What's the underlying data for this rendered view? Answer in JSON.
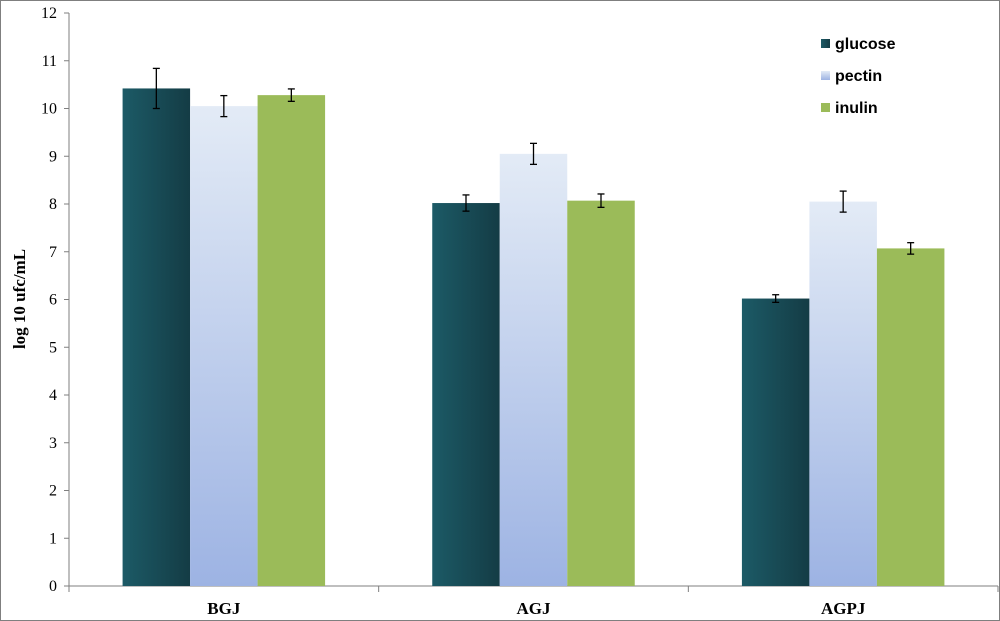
{
  "chart_data": {
    "type": "bar",
    "categories": [
      "BGJ",
      "AGJ",
      "AGPJ"
    ],
    "series": [
      {
        "name": "glucose",
        "values": [
          10.42,
          8.02,
          6.02
        ],
        "errors": [
          0.42,
          0.17,
          0.08
        ],
        "color": "#1c5a66",
        "color_dark": "#143c45"
      },
      {
        "name": "pectin",
        "values": [
          10.05,
          9.05,
          8.05
        ],
        "errors": [
          0.22,
          0.22,
          0.22
        ],
        "color": "#e3ebf6",
        "color_dark": "#9db3e3"
      },
      {
        "name": "inulin",
        "values": [
          10.28,
          8.07,
          7.07
        ],
        "errors": [
          0.13,
          0.14,
          0.12
        ],
        "color": "#9bbb59",
        "color_dark": "#9bbb59"
      }
    ],
    "ylabel": "log 10 ufc/mL",
    "xlabel": "",
    "ylim": [
      0,
      12
    ],
    "yticks": [
      0,
      1,
      2,
      3,
      4,
      5,
      6,
      7,
      8,
      9,
      10,
      11,
      12
    ],
    "grid": false,
    "legend_position": "top-right"
  }
}
